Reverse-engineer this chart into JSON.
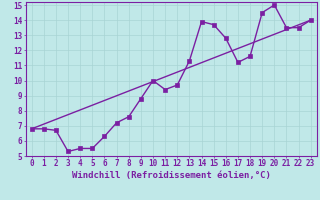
{
  "title": "",
  "xlabel": "Windchill (Refroidissement éolien,°C)",
  "bg_color": "#c0e8e8",
  "line_color": "#7b1fa2",
  "grid_color": "#a8d4d4",
  "axis_color": "#7b1fa2",
  "text_color": "#7b1fa2",
  "xlim": [
    -0.5,
    23.5
  ],
  "ylim": [
    5,
    15.2
  ],
  "xticks": [
    0,
    1,
    2,
    3,
    4,
    5,
    6,
    7,
    8,
    9,
    10,
    11,
    12,
    13,
    14,
    15,
    16,
    17,
    18,
    19,
    20,
    21,
    22,
    23
  ],
  "yticks": [
    5,
    6,
    7,
    8,
    9,
    10,
    11,
    12,
    13,
    14,
    15
  ],
  "data_x": [
    0,
    1,
    2,
    3,
    4,
    5,
    6,
    7,
    8,
    9,
    10,
    11,
    12,
    13,
    14,
    15,
    16,
    17,
    18,
    19,
    20,
    21,
    22,
    23
  ],
  "data_y": [
    6.8,
    6.8,
    6.7,
    5.3,
    5.5,
    5.5,
    6.3,
    7.2,
    7.6,
    8.8,
    10.0,
    9.4,
    9.7,
    11.3,
    13.9,
    13.7,
    12.8,
    11.2,
    11.6,
    14.5,
    15.0,
    13.5,
    13.5,
    14.0
  ],
  "trend_x": [
    0,
    23
  ],
  "trend_y": [
    6.8,
    14.0
  ],
  "markersize": 2.5,
  "linewidth": 1.0,
  "font_size": 6.5,
  "tick_font_size": 5.5
}
